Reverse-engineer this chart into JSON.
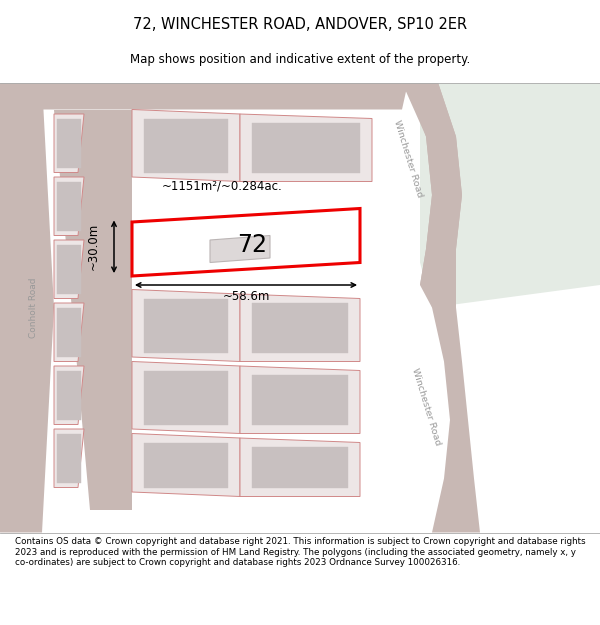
{
  "title_line1": "72, WINCHESTER ROAD, ANDOVER, SP10 2ER",
  "title_line2": "Map shows position and indicative extent of the property.",
  "footer_text": "Contains OS data © Crown copyright and database right 2021. This information is subject to Crown copyright and database rights 2023 and is reproduced with the permission of HM Land Registry. The polygons (including the associated geometry, namely x, y co-ordinates) are subject to Crown copyright and database rights 2023 Ordnance Survey 100026316.",
  "bg_map_color": "#f2eded",
  "road_color": "#c8b8b4",
  "parcel_fill": "#ede6e6",
  "parcel_stroke": "#d08888",
  "building_fill": "#c8c0c0",
  "highlight_fill": "#ffffff",
  "highlight_stroke": "#ee0000",
  "green_area_color": "#e4ebe4",
  "road_label_color": "#999999",
  "area_label": "~1151m²/~0.284ac.",
  "width_label": "~58.6m",
  "height_label": "~30.0m",
  "plot_number": "72",
  "road_label_upper": "Winchester Road",
  "road_label_lower": "Winchester Road",
  "left_road_label": "Conholt Road"
}
